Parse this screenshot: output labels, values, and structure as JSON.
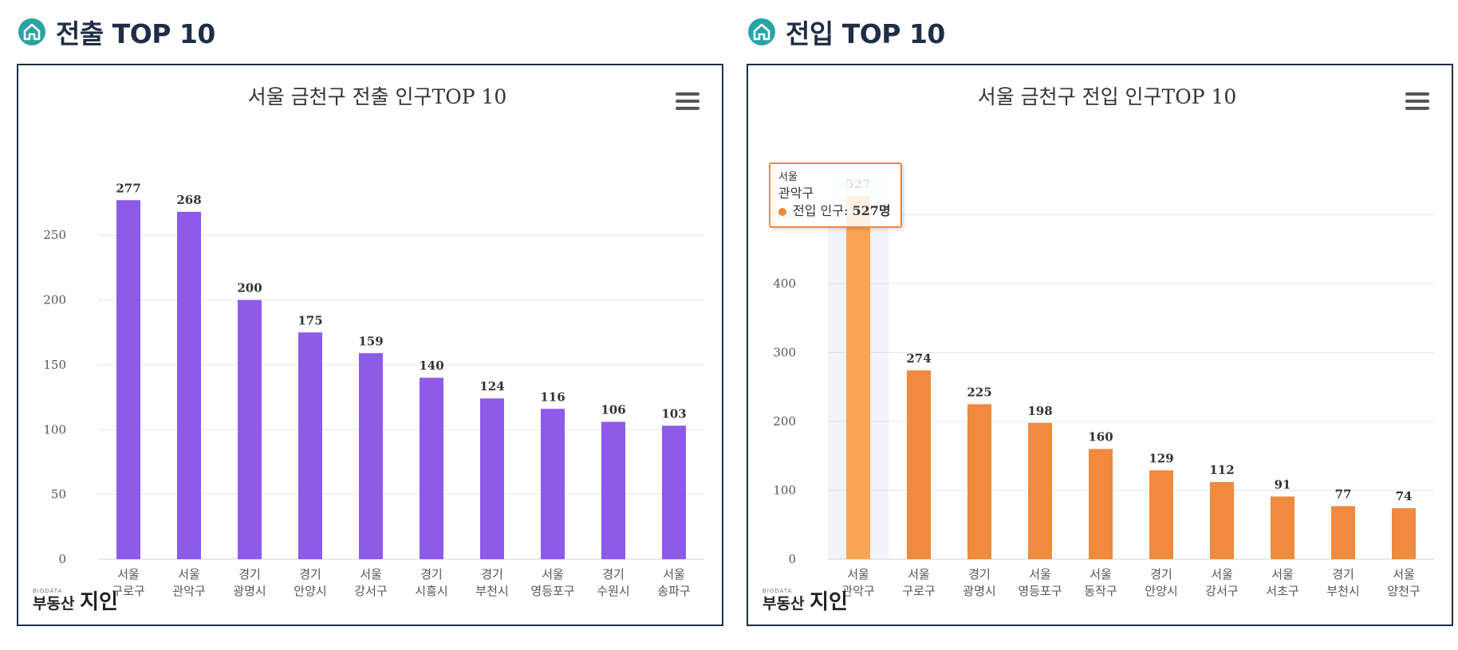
{
  "sections": [
    {
      "heading": "전출 TOP 10"
    },
    {
      "heading": "전입 TOP 10"
    }
  ],
  "logo": {
    "small": "BIGDATA",
    "text_a": "부동산",
    "text_b": "지인"
  },
  "colors": {
    "accent_icon": "#2aa3a3",
    "bar_out": "#8e5ae8",
    "bar_in": "#ef8a3e",
    "bar_in_hover": "#f9a555",
    "heading": "#1f2e45"
  },
  "chart_data": [
    {
      "type": "bar",
      "title": "서울 금천구 전출 인구TOP 10",
      "categories": [
        [
          "서울",
          "구로구"
        ],
        [
          "서울",
          "관악구"
        ],
        [
          "경기",
          "광명시"
        ],
        [
          "경기",
          "안양시"
        ],
        [
          "서울",
          "강서구"
        ],
        [
          "경기",
          "시흥시"
        ],
        [
          "경기",
          "부천시"
        ],
        [
          "서울",
          "영등포구"
        ],
        [
          "경기",
          "수원시"
        ],
        [
          "서울",
          "송파구"
        ]
      ],
      "values": [
        277,
        268,
        200,
        175,
        159,
        140,
        124,
        116,
        106,
        103
      ],
      "yticks": [
        0,
        50,
        100,
        150,
        200,
        250
      ],
      "ylim": [
        0,
        295
      ],
      "color": "#8e5ae8",
      "grid": true
    },
    {
      "type": "bar",
      "title": "서울 금천구 전입 인구TOP 10",
      "categories": [
        [
          "서울",
          "관악구"
        ],
        [
          "서울",
          "구로구"
        ],
        [
          "경기",
          "광명시"
        ],
        [
          "서울",
          "영등포구"
        ],
        [
          "서울",
          "동작구"
        ],
        [
          "경기",
          "안양시"
        ],
        [
          "서울",
          "강서구"
        ],
        [
          "서울",
          "서초구"
        ],
        [
          "경기",
          "부천시"
        ],
        [
          "서울",
          "양천구"
        ]
      ],
      "values": [
        527,
        274,
        225,
        198,
        160,
        129,
        112,
        91,
        77,
        74
      ],
      "yticks": [
        0,
        100,
        200,
        300,
        400,
        500
      ],
      "ylim": [
        0,
        555
      ],
      "color": "#ef8a3e",
      "grid": true,
      "highlight_index": 0
    }
  ],
  "tooltip": {
    "line1": "서울",
    "line2": "관악구",
    "series_label": "전입 인구:",
    "value_label": "527명"
  }
}
